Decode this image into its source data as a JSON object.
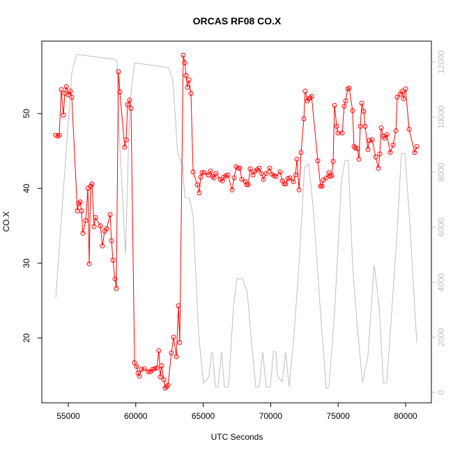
{
  "chart_data": {
    "type": "line",
    "title": "ORCAS RF08 CO.X",
    "xlabel": "UTC Seconds",
    "ylabel": "CO.X",
    "xlim": [
      53037,
      81911
    ],
    "xticks": [
      55000,
      60000,
      65000,
      70000,
      75000,
      80000
    ],
    "ylim": [
      11.33,
      59.69
    ],
    "yticks": [
      20,
      30,
      40,
      50
    ],
    "y2lim": [
      -380,
      12760
    ],
    "y2ticks": [
      0,
      2000,
      4000,
      6000,
      8000,
      10000,
      12000
    ],
    "series": [
      {
        "color": "#bebebe",
        "axis": "y2",
        "x": [
          54070,
          55260,
          55620,
          58460,
          58620,
          58720,
          59240,
          59550,
          59910,
          62440,
          62750,
          63110,
          63470,
          63630,
          63990,
          64250,
          64660,
          65020,
          65430,
          65590,
          65690,
          65900,
          66100,
          66360,
          66570,
          66880,
          67240,
          67500,
          67910,
          68270,
          68530,
          68890,
          69150,
          69410,
          69670,
          69980,
          70190,
          70390,
          70500,
          70860,
          71110,
          71370,
          71730,
          72150,
          72510,
          72820,
          73180,
          73700,
          74110,
          74320,
          74730,
          75250,
          75510,
          75760,
          76070,
          76380,
          76800,
          77210,
          77670,
          78040,
          78350,
          78600,
          78960,
          79380,
          79690,
          79950,
          80310,
          80830
        ],
        "values": [
          3420,
          11600,
          12280,
          12100,
          12030,
          9950,
          5010,
          10460,
          11970,
          11800,
          11340,
          8680,
          8280,
          7090,
          7040,
          6400,
          2100,
          330,
          580,
          1390,
          1440,
          200,
          200,
          1470,
          200,
          200,
          3110,
          4130,
          4130,
          3620,
          2100,
          200,
          200,
          1470,
          200,
          200,
          1470,
          1470,
          580,
          380,
          1470,
          200,
          2100,
          5010,
          8180,
          8300,
          6530,
          2860,
          150,
          200,
          2860,
          7670,
          8430,
          8430,
          4630,
          2610,
          350,
          1340,
          4630,
          3110,
          350,
          350,
          2860,
          5900,
          8680,
          8680,
          6150,
          1800
        ]
      },
      {
        "color": "#ff0000",
        "marker": "circle",
        "x": [
          54070,
          54225,
          54330,
          54480,
          54640,
          54740,
          54850,
          55000,
          55155,
          55260,
          55670,
          55770,
          55880,
          55980,
          56080,
          56290,
          56450,
          56550,
          56650,
          56760,
          56910,
          57010,
          57380,
          57530,
          57690,
          57840,
          58100,
          58200,
          58310,
          58460,
          58560,
          58720,
          58820,
          59180,
          59290,
          59390,
          59550,
          59650,
          59910,
          60060,
          60170,
          60270,
          60420,
          60630,
          60940,
          61100,
          61250,
          61400,
          61560,
          61710,
          61820,
          61920,
          62080,
          62180,
          62280,
          62390,
          62640,
          62800,
          63010,
          63160,
          63260,
          63520,
          63630,
          63730,
          63830,
          63940,
          64090,
          64250,
          64560,
          64710,
          64810,
          64920,
          65070,
          65380,
          65540,
          65690,
          65800,
          65950,
          66260,
          66420,
          66520,
          66670,
          66830,
          67140,
          67290,
          67450,
          67600,
          67710,
          67860,
          68120,
          68220,
          68330,
          68480,
          68690,
          68840,
          69000,
          69150,
          69310,
          69460,
          69670,
          69930,
          70080,
          70240,
          70390,
          70700,
          70860,
          71010,
          71110,
          71270,
          71420,
          71680,
          71840,
          71940,
          72100,
          72250,
          72460,
          72560,
          72720,
          72820,
          72920,
          73030,
          73490,
          73700,
          73800,
          73900,
          74110,
          74320,
          74420,
          74520,
          74630,
          74730,
          74890,
          74990,
          75300,
          75450,
          75560,
          75710,
          75820,
          76070,
          76180,
          76280,
          76440,
          76540,
          76640,
          76750,
          76900,
          77000,
          77210,
          77310,
          77520,
          77780,
          77980,
          78090,
          78190,
          78350,
          78450,
          78600,
          78860,
          79070,
          79280,
          79380,
          79590,
          79740,
          79840,
          80000,
          80260,
          80670,
          80830
        ],
        "values": [
          47.1,
          47.0,
          47.1,
          53.2,
          49.8,
          52.7,
          53.6,
          52.5,
          53.0,
          52.2,
          37.0,
          38.0,
          38.2,
          37.0,
          34.0,
          35.7,
          40.0,
          29.9,
          40.3,
          40.6,
          34.9,
          36.1,
          35.0,
          32.3,
          34.3,
          34.6,
          36.5,
          33.0,
          30.4,
          27.9,
          26.6,
          55.6,
          52.9,
          45.5,
          46.5,
          51.2,
          51.8,
          50.7,
          16.7,
          16.2,
          15.3,
          14.9,
          15.8,
          15.9,
          15.5,
          15.5,
          15.8,
          15.9,
          16.0,
          18.3,
          14.8,
          16.3,
          14.4,
          13.3,
          13.5,
          13.7,
          18.0,
          20.1,
          17.5,
          24.3,
          19.4,
          57.8,
          56.8,
          55.1,
          53.5,
          54.5,
          52.7,
          42.2,
          40.5,
          39.4,
          41.5,
          42.1,
          42.1,
          41.8,
          42.3,
          41.6,
          41.4,
          42.0,
          41.2,
          41.0,
          41.5,
          41.7,
          41.8,
          39.8,
          41.4,
          42.9,
          42.7,
          42.7,
          41.2,
          40.9,
          40.5,
          40.5,
          42.6,
          41.8,
          42.3,
          42.5,
          42.7,
          42.0,
          41.2,
          42.0,
          42.7,
          41.9,
          41.7,
          41.6,
          42.2,
          41.0,
          40.6,
          40.6,
          41.3,
          41.4,
          40.9,
          41.8,
          43.9,
          39.8,
          44.8,
          49.3,
          53.0,
          51.7,
          52.0,
          52.1,
          52.3,
          43.7,
          40.3,
          40.3,
          41.1,
          41.4,
          42.1,
          41.6,
          41.7,
          43.6,
          51.1,
          48.3,
          47.4,
          47.4,
          51.0,
          51.7,
          53.3,
          53.4,
          50.4,
          45.6,
          45.4,
          45.3,
          43.9,
          48.3,
          51.4,
          50.3,
          48.3,
          45.2,
          46.4,
          46.5,
          44.2,
          42.7,
          44.6,
          48.1,
          47.0,
          46.7,
          47.2,
          44.8,
          45.8,
          47.7,
          52.2,
          52.6,
          53.0,
          52.0,
          53.3,
          47.9,
          44.8,
          45.6
        ]
      }
    ]
  }
}
